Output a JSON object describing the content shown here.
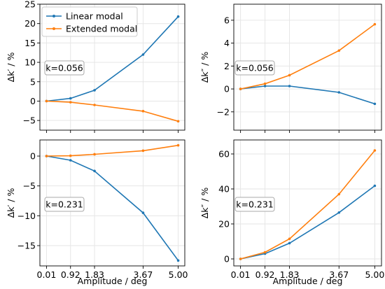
{
  "colors": {
    "linear": "#1f77b4",
    "extended": "#ff7f0e",
    "grid": "#e6e6e6"
  },
  "chart_data": [
    {
      "type": "line",
      "x": [
        0.01,
        0.92,
        1.83,
        3.67,
        5.0
      ],
      "xticks": [
        "0.01",
        "0.92",
        "1.83",
        "3.67",
        "5.00"
      ],
      "xlabel": "",
      "ylabel": "Δk′ / %",
      "ylim": [
        -7.5,
        25
      ],
      "yticks": [
        -5,
        0,
        5,
        10,
        15,
        20,
        25
      ],
      "annotation": "k=0.056",
      "legend": {
        "position": "top-left",
        "entries": [
          "Linear modal",
          "Extended modal"
        ]
      },
      "grid": true,
      "series": [
        {
          "name": "Linear modal",
          "values": [
            0.0,
            0.7,
            2.8,
            12.0,
            21.8
          ]
        },
        {
          "name": "Extended modal",
          "values": [
            0.0,
            -0.3,
            -1.0,
            -2.6,
            -5.2
          ]
        }
      ]
    },
    {
      "type": "line",
      "x": [
        0.01,
        0.92,
        1.83,
        3.67,
        5.0
      ],
      "xticks": [
        "0.01",
        "0.92",
        "1.83",
        "3.67",
        "5.00"
      ],
      "xlabel": "",
      "ylabel": "Δk″ / %",
      "ylim": [
        -3.6,
        7.4
      ],
      "yticks": [
        -2,
        0,
        2,
        4,
        6
      ],
      "annotation": "k=0.056",
      "grid": true,
      "series": [
        {
          "name": "Linear modal",
          "values": [
            0.0,
            0.25,
            0.25,
            -0.3,
            -1.3
          ]
        },
        {
          "name": "Extended modal",
          "values": [
            0.0,
            0.45,
            1.2,
            3.35,
            5.65
          ]
        }
      ]
    },
    {
      "type": "line",
      "x": [
        0.01,
        0.92,
        1.83,
        3.67,
        5.0
      ],
      "xticks": [
        "0.01",
        "0.92",
        "1.83",
        "3.67",
        "5.00"
      ],
      "xlabel": "Amplitude / deg",
      "ylabel": "Δk′ / %",
      "ylim": [
        -18.4,
        2.7
      ],
      "yticks": [
        -15,
        -10,
        -5,
        0
      ],
      "annotation": "k=0.231",
      "grid": true,
      "series": [
        {
          "name": "Linear modal",
          "values": [
            0.0,
            -0.7,
            -2.5,
            -9.5,
            -17.5
          ]
        },
        {
          "name": "Extended modal",
          "values": [
            0.0,
            0.05,
            0.3,
            0.9,
            1.8
          ]
        }
      ]
    },
    {
      "type": "line",
      "x": [
        0.01,
        0.92,
        1.83,
        3.67,
        5.0
      ],
      "xticks": [
        "0.01",
        "0.92",
        "1.83",
        "3.67",
        "5.00"
      ],
      "xlabel": "Amplitude / deg",
      "ylabel": "Δk″ / %",
      "ylim": [
        -4,
        68
      ],
      "yticks": [
        0,
        20,
        40,
        60
      ],
      "annotation": "k=0.231",
      "grid": true,
      "series": [
        {
          "name": "Linear modal",
          "values": [
            0.0,
            3.0,
            9.0,
            26.5,
            41.8
          ]
        },
        {
          "name": "Extended modal",
          "values": [
            0.0,
            3.8,
            11.5,
            37.0,
            62.0
          ]
        }
      ]
    }
  ]
}
